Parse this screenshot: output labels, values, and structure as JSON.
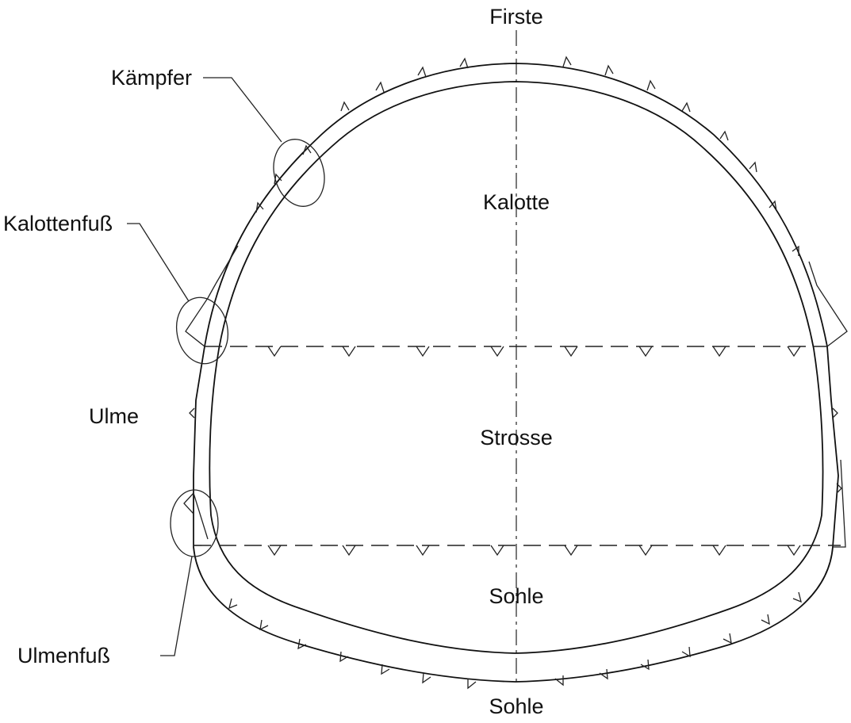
{
  "labels": {
    "firste": "Firste",
    "kaempfer": "Kämpfer",
    "kalotte": "Kalotte",
    "kalottenfuss": "Kalottenfuß",
    "ulme": "Ulme",
    "strosse": "Strosse",
    "sohle_inner": "Sohle",
    "ulmenfuss": "Ulmenfuß",
    "sohle_bottom": "Sohle"
  },
  "colors": {
    "line": "#111111",
    "background": "#ffffff"
  }
}
